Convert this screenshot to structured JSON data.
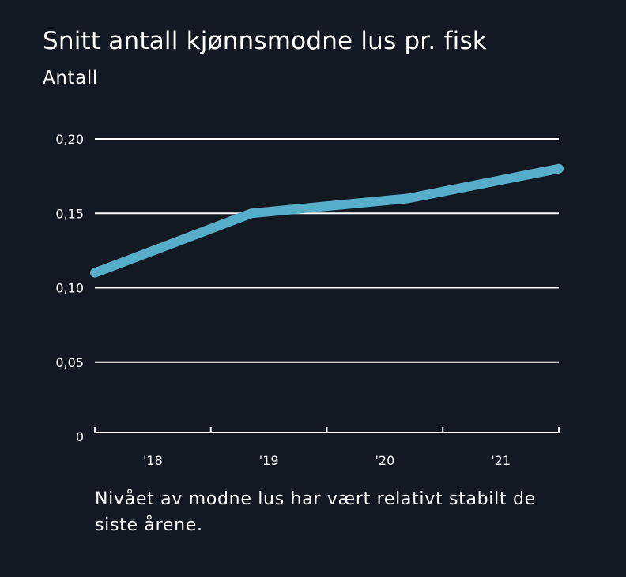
{
  "chart_data": {
    "type": "line",
    "title": "Snitt antall kjønnsmodne lus pr. fisk",
    "ylabel": "Antall",
    "xlabel": "",
    "x_tick_labels": [
      "'18",
      "'19",
      "'20",
      "'21"
    ],
    "y_tick_labels": [
      "0",
      "0,05",
      "0,10",
      "0,15",
      "0,20"
    ],
    "y_ticks": [
      0,
      0.05,
      0.1,
      0.15,
      0.2
    ],
    "ylim": [
      0,
      0.2
    ],
    "xlim": [
      2017.5,
      2021.5
    ],
    "series": [
      {
        "name": "Snitt antall kjønnsmodne lus pr. fisk",
        "x": [
          2017.5,
          2018.85,
          2020.2,
          2021.5
        ],
        "values": [
          0.11,
          0.15,
          0.16,
          0.18
        ],
        "color": "#56aecb"
      }
    ],
    "grid": true
  },
  "caption": "Nivået av modne lus har vært relativt stabilt de siste årene.",
  "colors": {
    "background": "#131922",
    "text": "#ffffff",
    "line": "#56aecb",
    "grid": "#ffffff"
  }
}
